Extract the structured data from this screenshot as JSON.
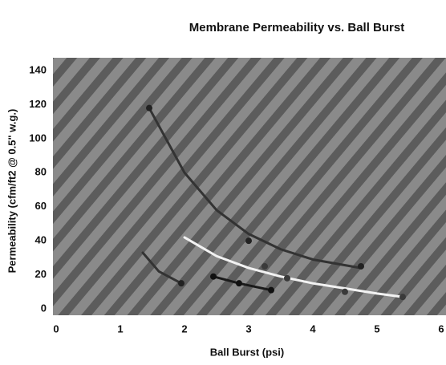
{
  "chart_data": {
    "type": "scatter",
    "title": "Membrane Permeability vs. Ball Burst",
    "x_label": "Ball Burst (psi)",
    "y_label": "Permeability (cfm/ft2 @ 0.5\" w.g.)",
    "xlim": [
      0,
      6
    ],
    "xticks": [
      0,
      1,
      2,
      3,
      4,
      5,
      6
    ],
    "ylim": [
      0,
      140
    ],
    "yticks": [
      0,
      20,
      40,
      60,
      80,
      100,
      120,
      140
    ],
    "grid": false,
    "series": [
      {
        "mode": "line",
        "color": "#333333",
        "x": [
          1.45,
          2,
          2.5,
          3,
          3.5,
          4,
          4.75
        ],
        "values": [
          118,
          80,
          58,
          44,
          35,
          29,
          24
        ]
      },
      {
        "mode": "line",
        "color": "#333333",
        "x": [
          1.35,
          1.6,
          1.95
        ],
        "values": [
          33,
          22,
          15
        ]
      },
      {
        "mode": "line",
        "color": "#f2f2f2",
        "x": [
          2.0,
          2.5,
          3,
          3.5,
          4,
          4.5,
          5,
          5.4
        ],
        "values": [
          42,
          31,
          24,
          19,
          15,
          12,
          9,
          7
        ]
      },
      {
        "mode": "line",
        "color": "#1a1a1a",
        "x": [
          2.45,
          2.85,
          3.35
        ],
        "values": [
          19,
          15,
          11
        ]
      },
      {
        "mode": "markers",
        "color": "#222222",
        "x": [
          1.45,
          3.0,
          4.75,
          1.95
        ],
        "values": [
          118,
          40,
          25,
          15
        ]
      },
      {
        "mode": "markers",
        "color": "#111111",
        "x": [
          2.45,
          2.85,
          3.35
        ],
        "values": [
          19,
          15,
          11
        ]
      },
      {
        "mode": "markers",
        "color": "#3a3a3a",
        "x": [
          3.25,
          3.6,
          4.5,
          5.4
        ],
        "values": [
          25,
          18,
          10,
          7
        ]
      }
    ]
  }
}
